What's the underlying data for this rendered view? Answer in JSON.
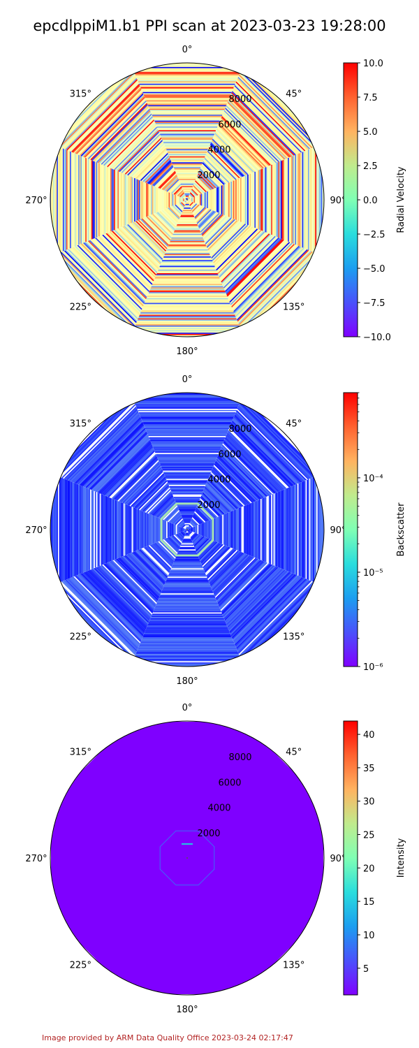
{
  "title": "epcdlppiM1.b1 PPI scan at 2023-03-23 19:28:00",
  "footer": "Image provided by ARM Data Quality Office 2023-03-24 02:17:47",
  "chart_data": [
    {
      "type": "polar-ppi",
      "angle_ticks": [
        "0°",
        "45°",
        "90°",
        "135°",
        "180°",
        "225°",
        "270°",
        "315°"
      ],
      "radial_ticks": [
        2000,
        4000,
        6000,
        8000
      ],
      "rlim": [
        0,
        10000
      ],
      "colormap": "rainbow",
      "colorbar": {
        "label": "Radial Velocity",
        "scale": "linear",
        "range": [
          -10,
          10
        ],
        "ticks": [
          "10.0",
          "7.5",
          "5.0",
          "2.5",
          "0.0",
          "−2.5",
          "−5.0",
          "−7.5",
          "−10.0"
        ]
      },
      "pattern": "velocity"
    },
    {
      "type": "polar-ppi",
      "angle_ticks": [
        "0°",
        "45°",
        "90°",
        "135°",
        "180°",
        "225°",
        "270°",
        "315°"
      ],
      "radial_ticks": [
        2000,
        4000,
        6000,
        8000
      ],
      "rlim": [
        0,
        10000
      ],
      "colormap": "rainbow",
      "colorbar": {
        "label": "Backscatter",
        "scale": "log",
        "range": [
          1e-06,
          0.0008
        ],
        "ticks": [
          "10⁻⁴",
          "10⁻⁵",
          "10⁻⁶"
        ]
      },
      "pattern": "backscatter"
    },
    {
      "type": "polar-ppi",
      "angle_ticks": [
        "0°",
        "45°",
        "90°",
        "135°",
        "180°",
        "225°",
        "270°",
        "315°"
      ],
      "radial_ticks": [
        2000,
        4000,
        6000,
        8000
      ],
      "rlim": [
        0,
        10000
      ],
      "colormap": "rainbow",
      "colorbar": {
        "label": "Intensity",
        "scale": "linear",
        "range": [
          1,
          42
        ],
        "ticks": [
          "40",
          "35",
          "30",
          "25",
          "20",
          "15",
          "10",
          "5"
        ]
      },
      "pattern": "intensity"
    }
  ]
}
